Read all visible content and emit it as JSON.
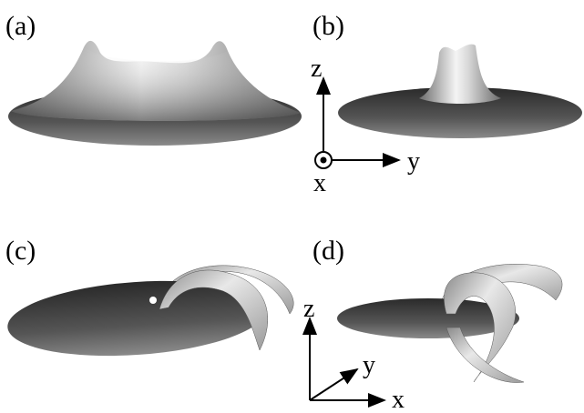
{
  "panels": [
    {
      "label": "(a)"
    },
    {
      "label": "(b)"
    },
    {
      "label": "(c)"
    },
    {
      "label": "(d)"
    }
  ],
  "axes_top": {
    "z": "z",
    "y": "y",
    "x": "x"
  },
  "axes_bottom": {
    "z": "z",
    "y": "y",
    "x": "x"
  }
}
